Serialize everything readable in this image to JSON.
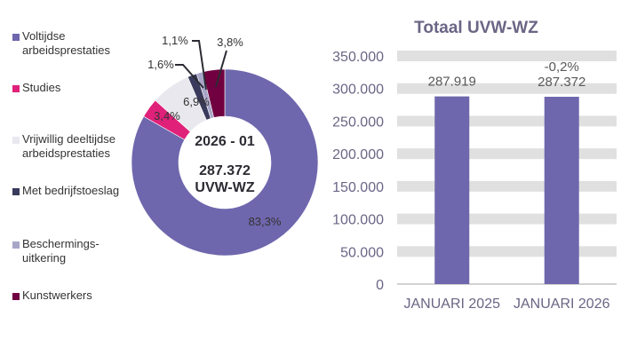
{
  "colors": {
    "voltijdse": "#6e67ad",
    "studies": "#e0217a",
    "vrijwillig": "#e8e8ee",
    "bedrijfstoeslag": "#3a3a5c",
    "beschermings": "#a8a6c8",
    "kunstwerkers": "#700040",
    "bar": "#6e67ad",
    "grid": "#e0e0e0",
    "axis_text": "#6b6585"
  },
  "legend": [
    {
      "label_lines": [
        "Voltijdse",
        "arbeidsprestaties"
      ],
      "color_key": "voltijdse"
    },
    {
      "label_lines": [
        "Studies"
      ],
      "color_key": "studies"
    },
    {
      "label_lines": [
        "Vrijwillig deeltijdse",
        "arbeidsprestaties"
      ],
      "color_key": "vrijwillig"
    },
    {
      "label_lines": [
        "Met bedrijfstoeslag"
      ],
      "color_key": "bedrijfstoeslag"
    },
    {
      "label_lines": [
        "Beschermings-",
        "uitkering"
      ],
      "color_key": "beschermings"
    },
    {
      "label_lines": [
        "Kunstwerkers"
      ],
      "color_key": "kunstwerkers"
    }
  ],
  "chart_data": [
    {
      "type": "pie",
      "variant": "donut",
      "center_text": {
        "period": "2026 - 01",
        "total": "287.372",
        "unit": "UVW-WZ"
      },
      "slices": [
        {
          "name": "Voltijdse arbeidsprestaties",
          "value": 83.3,
          "label": "83,3%",
          "color_key": "voltijdse"
        },
        {
          "name": "Studies",
          "value": 3.4,
          "label": "3,4%",
          "color_key": "studies"
        },
        {
          "name": "Vrijwillig deeltijdse arbeidsprestaties",
          "value": 6.9,
          "label": "6,9%",
          "color_key": "vrijwillig"
        },
        {
          "name": "Met bedrijfstoeslag",
          "value": 1.6,
          "label": "1,6%",
          "color_key": "bedrijfstoeslag"
        },
        {
          "name": "Beschermingsuitkering",
          "value": 1.1,
          "label": "1,1%",
          "color_key": "beschermings"
        },
        {
          "name": "Kunstwerkers",
          "value": 3.8,
          "label": "3,8%",
          "color_key": "kunstwerkers"
        }
      ],
      "legend_position": "left"
    },
    {
      "type": "bar",
      "title": "Totaal UVW-WZ",
      "categories": [
        "JANUARI 2025",
        "JANUARI 2026"
      ],
      "values": [
        287919,
        287372
      ],
      "value_labels": [
        "287.919",
        "287.372"
      ],
      "change_labels": [
        "",
        "-0,2%"
      ],
      "ylim": [
        0,
        350000
      ],
      "yticks": [
        0,
        50000,
        100000,
        150000,
        200000,
        250000,
        300000,
        350000
      ],
      "ytick_labels": [
        "0",
        "50.000",
        "100.000",
        "150.000",
        "200.000",
        "250.000",
        "300.000",
        "350.000"
      ],
      "xlabel": "",
      "ylabel": "",
      "grid": true
    }
  ]
}
